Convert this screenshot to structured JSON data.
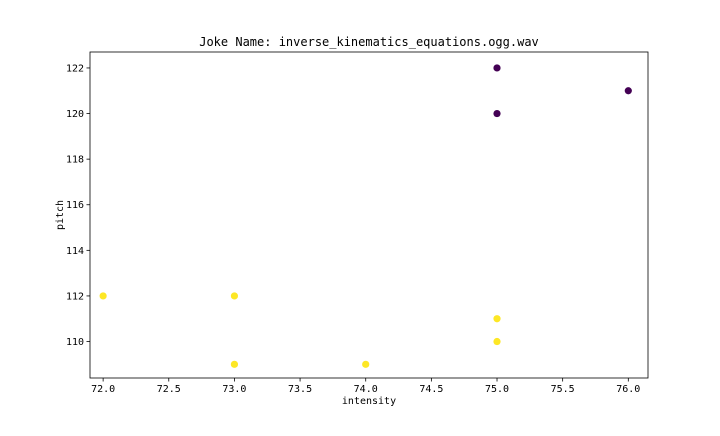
{
  "chart_data": {
    "type": "scatter",
    "title": "Joke Name: inverse_kinematics_equations.ogg.wav",
    "xlabel": "intensity",
    "ylabel": "pitch",
    "xlim": [
      71.9,
      76.15
    ],
    "ylim": [
      108.4,
      122.7
    ],
    "xticks": [
      72.0,
      72.5,
      73.0,
      73.5,
      74.0,
      74.5,
      75.0,
      75.5,
      76.0
    ],
    "xtick_labels": [
      "72.0",
      "72.5",
      "73.0",
      "73.5",
      "74.0",
      "74.5",
      "75.0",
      "75.5",
      "76.0"
    ],
    "yticks": [
      110,
      112,
      114,
      116,
      118,
      120,
      122
    ],
    "ytick_labels": [
      "110",
      "112",
      "114",
      "116",
      "118",
      "120",
      "122"
    ],
    "grid": false,
    "colormap": "viridis",
    "color_low": "#440154",
    "color_high": "#fde725",
    "series": [
      {
        "color": "#440154",
        "points": [
          {
            "x": 75.0,
            "y": 122
          },
          {
            "x": 75.0,
            "y": 120
          },
          {
            "x": 76.0,
            "y": 121
          }
        ]
      },
      {
        "color": "#fde725",
        "points": [
          {
            "x": 72.0,
            "y": 112
          },
          {
            "x": 73.0,
            "y": 112
          },
          {
            "x": 73.0,
            "y": 109
          },
          {
            "x": 74.0,
            "y": 109
          },
          {
            "x": 75.0,
            "y": 111
          },
          {
            "x": 75.0,
            "y": 110
          }
        ]
      }
    ]
  }
}
